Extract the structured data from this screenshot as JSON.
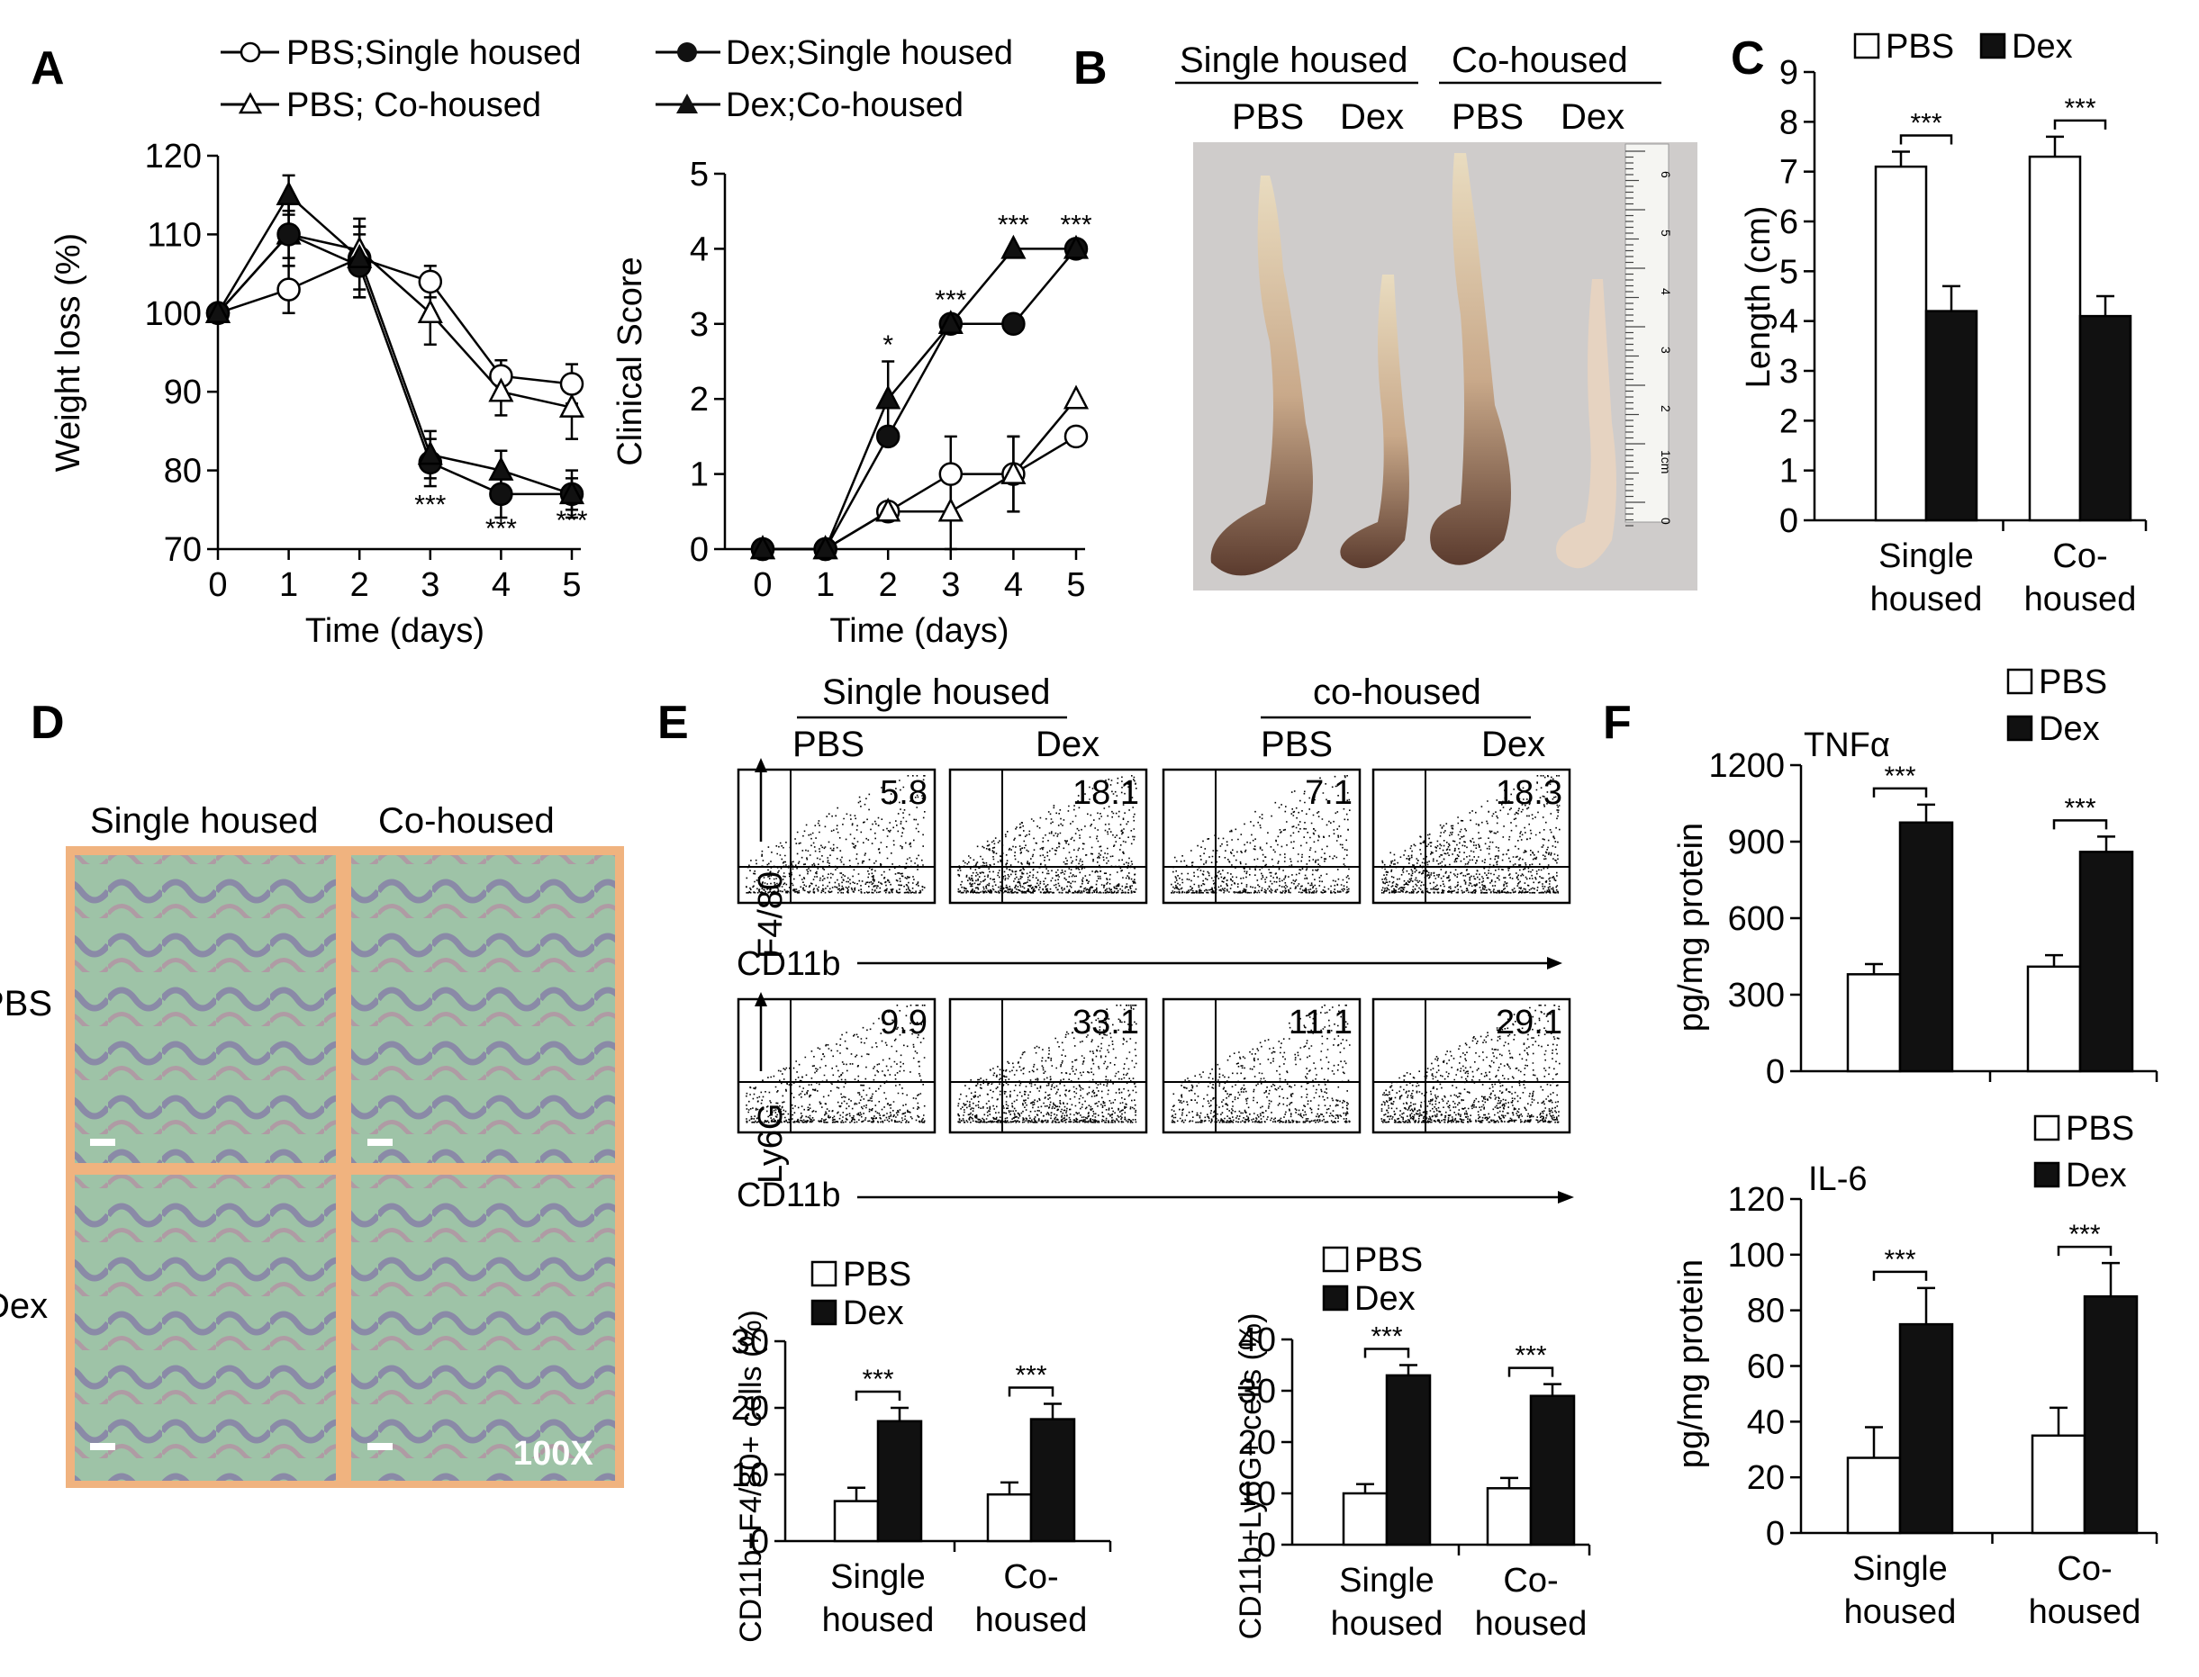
{
  "panels": {
    "A": "A",
    "B": "B",
    "C": "C",
    "D": "D",
    "E": "E",
    "F": "F"
  },
  "legend_A": [
    {
      "label": "PBS;Single housed",
      "marker": "circle",
      "filled": false
    },
    {
      "label": "Dex;Single housed",
      "marker": "circle",
      "filled": true
    },
    {
      "label": "PBS; Co-housed",
      "marker": "triangle",
      "filled": false
    },
    {
      "label": "Dex;Co-housed",
      "marker": "triangle",
      "filled": true
    }
  ],
  "group_labels": {
    "single": "Single housed",
    "co": "Co-housed",
    "co_lower": "co-housed"
  },
  "treatment_labels": {
    "pbs": "PBS",
    "dex": "Dex"
  },
  "histology": {
    "row_pbs": "PBS",
    "row_dex": "Dex",
    "magnification": "100X"
  },
  "flow": {
    "axis_x": "CD11b",
    "axis_y_top": "F4/80",
    "axis_y_bottom": "Ly6G",
    "row1_values": [
      "5.8",
      "18.1",
      "7.1",
      "18.3"
    ],
    "row2_values": [
      "9.9",
      "33.1",
      "11.1",
      "29.1"
    ]
  },
  "ruler_labels": [
    "6",
    "5",
    "4",
    "3",
    "2",
    "1cm",
    "0"
  ],
  "chart_data": [
    {
      "id": "A-weight",
      "type": "line",
      "title": "",
      "xlabel": "Time (days)",
      "ylabel": "Weight loss (%)",
      "x": [
        0,
        1,
        2,
        3,
        4,
        5
      ],
      "xlim": [
        0,
        5
      ],
      "ylim": [
        70,
        120
      ],
      "yticks": [
        70,
        80,
        90,
        100,
        110,
        120
      ],
      "series": [
        {
          "name": "PBS;Single housed",
          "marker": "circle",
          "filled": false,
          "values": [
            100,
            103,
            107,
            104,
            92,
            91
          ],
          "errors": [
            0,
            3,
            4,
            2,
            2,
            2.5
          ]
        },
        {
          "name": "PBS; Co-housed",
          "marker": "triangle",
          "filled": false,
          "values": [
            100,
            110,
            108,
            100,
            90,
            88
          ],
          "errors": [
            0,
            3,
            3,
            4,
            3,
            4
          ]
        },
        {
          "name": "Dex;Single housed",
          "marker": "circle",
          "filled": true,
          "values": [
            100,
            110,
            106,
            81,
            77,
            77
          ],
          "errors": [
            0,
            4,
            4,
            3,
            3,
            2
          ]
        },
        {
          "name": "Dex;Co-housed",
          "marker": "triangle",
          "filled": true,
          "values": [
            100,
            115,
            107,
            82,
            80,
            77
          ],
          "errors": [
            0,
            2.5,
            5,
            3,
            2.5,
            3
          ]
        }
      ],
      "annotations": [
        {
          "x": 3,
          "text": "***",
          "y": 74.5
        },
        {
          "x": 4,
          "text": "***",
          "y": 71.5
        },
        {
          "x": 5,
          "text": "***",
          "y": 72.5
        }
      ]
    },
    {
      "id": "A-score",
      "type": "line",
      "title": "",
      "xlabel": "Time (days)",
      "ylabel": "Clinical Score",
      "x": [
        0,
        1,
        2,
        3,
        4,
        5
      ],
      "xlim": [
        0,
        5
      ],
      "ylim": [
        0,
        5
      ],
      "yticks": [
        0,
        1,
        2,
        3,
        4,
        5
      ],
      "series": [
        {
          "name": "PBS;Single housed",
          "marker": "circle",
          "filled": false,
          "values": [
            0,
            0,
            0.5,
            1,
            1,
            1.5
          ],
          "errors": [
            0,
            0,
            0,
            0.5,
            0.5,
            0
          ]
        },
        {
          "name": "PBS; Co-housed",
          "marker": "triangle",
          "filled": false,
          "values": [
            0,
            0,
            0.5,
            0.5,
            1,
            2
          ],
          "errors": [
            0,
            0,
            0,
            0.5,
            0.5,
            0
          ]
        },
        {
          "name": "Dex;Single housed",
          "marker": "circle",
          "filled": true,
          "values": [
            0,
            0,
            1.5,
            3,
            3,
            4
          ],
          "errors": [
            0,
            0,
            0,
            0,
            0,
            0
          ]
        },
        {
          "name": "Dex;Co-housed",
          "marker": "triangle",
          "filled": true,
          "values": [
            0,
            0,
            2,
            3,
            4,
            4
          ],
          "errors": [
            0,
            0,
            0.5,
            0,
            0,
            0
          ]
        }
      ],
      "annotations": [
        {
          "x": 2,
          "text": "*",
          "y": 2.6
        },
        {
          "x": 3,
          "text": "***",
          "y": 3.2
        },
        {
          "x": 4,
          "text": "***",
          "y": 4.2
        },
        {
          "x": 5,
          "text": "***",
          "y": 4.2
        }
      ]
    },
    {
      "id": "C-length",
      "type": "bar",
      "ylabel": "Length (cm)",
      "categories": [
        "Single housed",
        "Co-housed"
      ],
      "category_lines": [
        [
          "Single",
          "housed"
        ],
        [
          "Co-",
          "housed"
        ]
      ],
      "ylim": [
        0,
        9
      ],
      "yticks": [
        0,
        1,
        2,
        3,
        4,
        5,
        6,
        7,
        8,
        9
      ],
      "series": [
        {
          "name": "PBS",
          "color": "#ffffff",
          "values": [
            7.1,
            7.3
          ],
          "errors": [
            0.3,
            0.4
          ]
        },
        {
          "name": "Dex",
          "color": "#111111",
          "values": [
            4.2,
            4.1
          ],
          "errors": [
            0.5,
            0.4
          ]
        }
      ],
      "significance": "***",
      "legend_position": "top"
    },
    {
      "id": "E-f480",
      "type": "bar",
      "ylabel": "CD11b+F4/80+ cells (%)",
      "categories": [
        "Single housed",
        "Co-housed"
      ],
      "category_lines": [
        [
          "Single",
          "housed"
        ],
        [
          "Co-",
          "housed"
        ]
      ],
      "ylim": [
        0,
        30
      ],
      "yticks": [
        0,
        10,
        20,
        30
      ],
      "series": [
        {
          "name": "PBS",
          "color": "#ffffff",
          "values": [
            6,
            7
          ],
          "errors": [
            2,
            1.8
          ]
        },
        {
          "name": "Dex",
          "color": "#111111",
          "values": [
            18,
            18.3
          ],
          "errors": [
            2,
            2.3
          ]
        }
      ],
      "significance": "***",
      "legend_position": "top-left"
    },
    {
      "id": "E-ly6g",
      "type": "bar",
      "ylabel": "CD11b+Ly6G+ cells (%)",
      "categories": [
        "Single housed",
        "Co-housed"
      ],
      "category_lines": [
        [
          "Single",
          "housed"
        ],
        [
          "Co-",
          "housed"
        ]
      ],
      "ylim": [
        0,
        40
      ],
      "yticks": [
        0,
        10,
        20,
        30,
        40
      ],
      "series": [
        {
          "name": "PBS",
          "color": "#ffffff",
          "values": [
            10,
            11
          ],
          "errors": [
            1.8,
            2
          ]
        },
        {
          "name": "Dex",
          "color": "#111111",
          "values": [
            33,
            29
          ],
          "errors": [
            2,
            2.3
          ]
        }
      ],
      "significance": "***",
      "legend_position": "top-left"
    },
    {
      "id": "F-tnf",
      "type": "bar",
      "title": "TNFα",
      "ylabel": "pg/mg protein",
      "categories": [
        "Single housed",
        "Co-housed"
      ],
      "category_lines": [],
      "ylim": [
        0,
        1200
      ],
      "yticks": [
        0,
        300,
        600,
        900,
        1200
      ],
      "series": [
        {
          "name": "PBS",
          "color": "#ffffff",
          "values": [
            380,
            410
          ],
          "errors": [
            40,
            45
          ]
        },
        {
          "name": "Dex",
          "color": "#111111",
          "values": [
            975,
            860
          ],
          "errors": [
            70,
            60
          ]
        }
      ],
      "significance": "***",
      "legend_position": "top-right"
    },
    {
      "id": "F-il6",
      "type": "bar",
      "title": "IL-6",
      "ylabel": "pg/mg protein",
      "categories": [
        "Single housed",
        "Co-housed"
      ],
      "category_lines": [
        [
          "Single",
          "housed"
        ],
        [
          "Co-",
          "housed"
        ]
      ],
      "ylim": [
        0,
        120
      ],
      "yticks": [
        0,
        20,
        40,
        60,
        80,
        100,
        120
      ],
      "series": [
        {
          "name": "PBS",
          "color": "#ffffff",
          "values": [
            27,
            35
          ],
          "errors": [
            11,
            10
          ]
        },
        {
          "name": "Dex",
          "color": "#111111",
          "values": [
            75,
            85
          ],
          "errors": [
            13,
            12
          ]
        }
      ],
      "significance": "***",
      "legend_position": "top-right"
    }
  ]
}
